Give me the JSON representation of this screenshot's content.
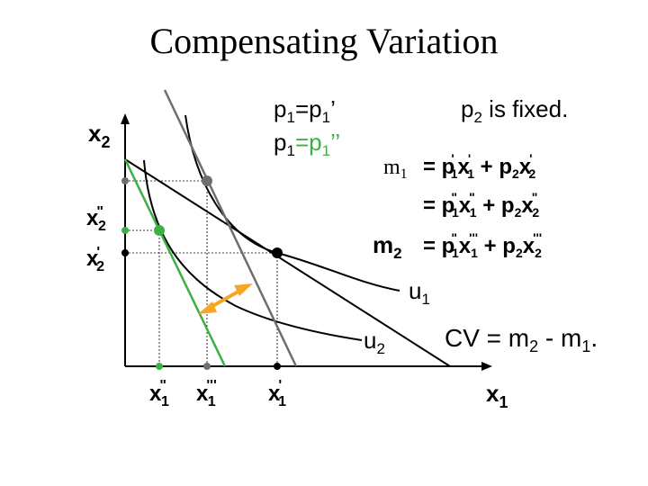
{
  "title": "Compensating Variation",
  "axes": {
    "x_label": "x",
    "x_label_sub": "1",
    "y_label": "x",
    "y_label_sub": "2"
  },
  "prices": {
    "line1_a": "p",
    "line1_a_sub": "1",
    "line1_eq": "=p",
    "line1_b_sub": "1",
    "line1_b_prime": "’",
    "line2_a": "p",
    "line2_a_sub": "1",
    "line2_eq": "=p",
    "line2_b_sub": "1",
    "line2_b_prime": "’’",
    "fixed_a": "p",
    "fixed_sub": "2",
    "fixed_text": " is fixed."
  },
  "equations": {
    "m1_lhs": "m",
    "m1_lhs_sub": "1",
    "eq1": "= p'1x'1 + p2x'2",
    "eq2": "= p\"1x\"1 + p2x\"2",
    "m2_lhs": "m",
    "m2_lhs_sub": "2",
    "eq3": "= p\"1x'''1 + p2x'''2"
  },
  "curves": {
    "u1_label": "u",
    "u1_sub": "1",
    "u2_label": "u",
    "u2_sub": "2"
  },
  "cv": {
    "text": "CV = m",
    "sub": "2",
    "rest": " - m",
    "sub2": "1",
    "end": "."
  },
  "ticks": {
    "x1_double": "x\"1",
    "x1_triple": "x'''1",
    "x1_single": "x'1",
    "x2_double": "x\"2",
    "x2_single": "x'2"
  },
  "colors": {
    "green": "#3cb043",
    "gray": "#6e6e6e",
    "orange": "#f5a623",
    "black": "#000000"
  }
}
